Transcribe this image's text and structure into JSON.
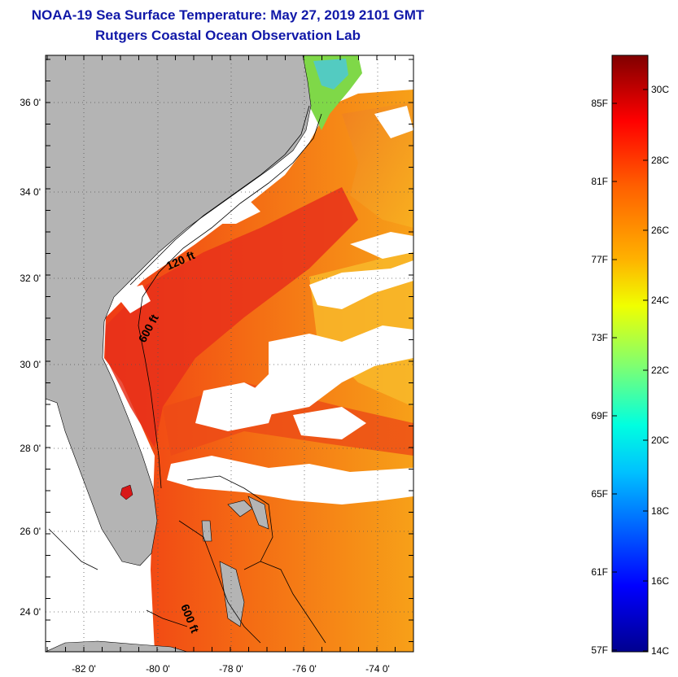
{
  "title": "NOAA-19 Sea Surface Temperature:  May 27, 2019 2101 GMT",
  "subtitle": "Rutgers Coastal Ocean Observation Lab",
  "map": {
    "lat_ticks": [
      "36 0'",
      "34 0'",
      "32 0'",
      "30 0'",
      "28 0'",
      "26 0'",
      "24 0'"
    ],
    "lon_ticks": [
      "-82 0'",
      "-80 0'",
      "-78 0'",
      "-76 0'",
      "-74 0'"
    ],
    "contour_labels": [
      "120 ft",
      "600 ft",
      "600 ft"
    ],
    "colors": {
      "land": "#b4b4b4",
      "cloud": "#ffffff",
      "grid": "#555555"
    }
  },
  "colorbar": {
    "fahrenheit_labels": [
      "85F",
      "81F",
      "77F",
      "73F",
      "69F",
      "65F",
      "61F",
      "57F"
    ],
    "celsius_labels": [
      "30C",
      "28C",
      "26C",
      "24C",
      "22C",
      "20C",
      "18C",
      "16C",
      "14C"
    ]
  }
}
